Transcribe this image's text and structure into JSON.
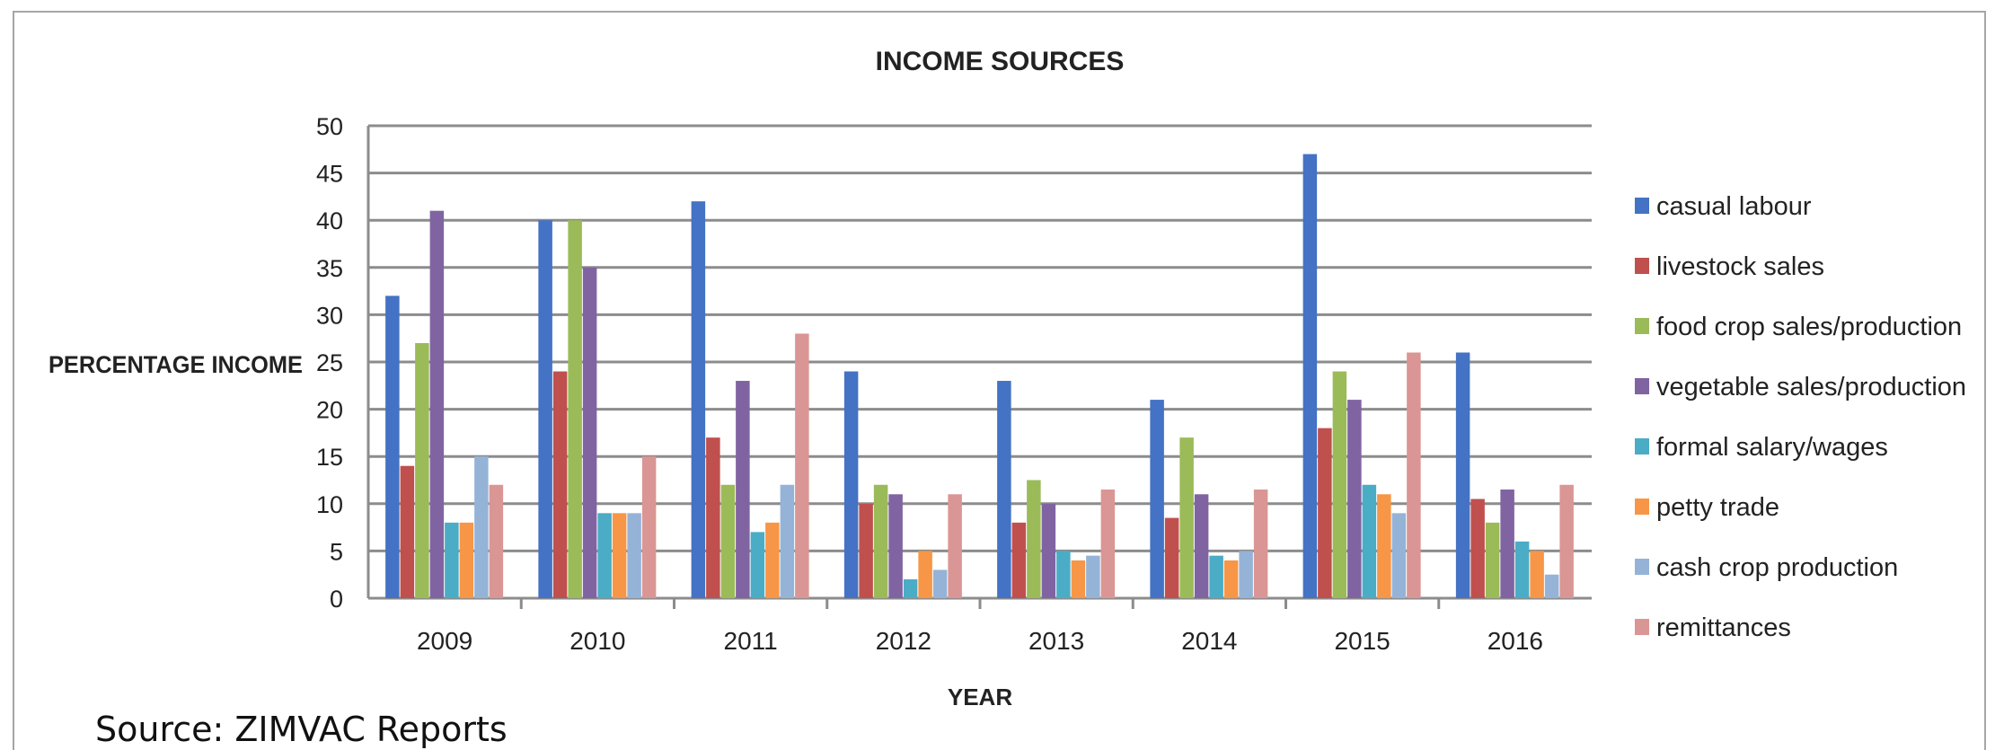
{
  "chart_data": {
    "type": "bar",
    "title": "INCOME SOURCES",
    "xlabel": "YEAR",
    "ylabel": "PERCENTAGE INCOME",
    "ylim": [
      0,
      50
    ],
    "yticks": [
      0,
      5,
      10,
      15,
      20,
      25,
      30,
      35,
      40,
      45,
      50
    ],
    "grid": true,
    "legend_position": "right",
    "categories": [
      "2009",
      "2010",
      "2011",
      "2012",
      "2013",
      "2014",
      "2015",
      "2016"
    ],
    "series": [
      {
        "name": "casual labour",
        "color": "#4472c4",
        "values": [
          32,
          40,
          42,
          24,
          23,
          21,
          47,
          26
        ]
      },
      {
        "name": "livestock sales",
        "color": "#c0504d",
        "values": [
          14,
          24,
          17,
          10,
          8,
          8.5,
          18,
          10.5
        ]
      },
      {
        "name": "food crop sales/production",
        "color": "#9bbb59",
        "values": [
          27,
          40,
          12,
          12,
          12.5,
          17,
          24,
          8
        ]
      },
      {
        "name": "vegetable sales/production",
        "color": "#8064a2",
        "values": [
          41,
          35,
          23,
          11,
          10,
          11,
          21,
          11.5
        ]
      },
      {
        "name": "formal salary/wages",
        "color": "#4bacc6",
        "values": [
          8,
          9,
          7,
          2,
          5,
          4.5,
          12,
          6
        ]
      },
      {
        "name": "petty trade",
        "color": "#f79646",
        "values": [
          8,
          9,
          8,
          5,
          4,
          4,
          11,
          5
        ]
      },
      {
        "name": "cash crop production",
        "color": "#95b3d7",
        "values": [
          15,
          9,
          12,
          3,
          4.5,
          5,
          9,
          2.5
        ]
      },
      {
        "name": "remittances",
        "color": "#da9694",
        "values": [
          12,
          15,
          28,
          11,
          11.5,
          11.5,
          26,
          12
        ]
      }
    ]
  },
  "source_note": "Source: ZIMVAC Reports"
}
